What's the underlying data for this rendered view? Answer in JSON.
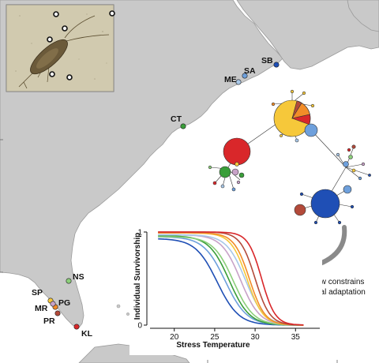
{
  "colors": {
    "ocean": "#ffffff",
    "land": "#c9c9c9",
    "coast": "#9a9a9a",
    "arrow": "#8a8a8a"
  },
  "sites": [
    {
      "code": "SB",
      "color": "#1f4fb5"
    },
    {
      "code": "SA",
      "color": "#6ea0dc"
    },
    {
      "code": "ME",
      "color": "#a9c8e8"
    },
    {
      "code": "CT",
      "color": "#3a9e3a"
    },
    {
      "code": "NS",
      "color": "#8ccf7a"
    },
    {
      "code": "SP",
      "color": "#f6c83a"
    },
    {
      "code": "MR",
      "color": "#f28c28"
    },
    {
      "code": "PG",
      "color": "#c8a2c8"
    },
    {
      "code": "PR",
      "color": "#b34a3a"
    },
    {
      "code": "KL",
      "color": "#d9272a"
    }
  ],
  "network": {
    "nodes_description": "haplotype network with pie-chart nodes colored by site"
  },
  "annotation": {
    "line1": "Gene flow constrains",
    "line2": "thermal adaptation"
  },
  "chart_data": {
    "type": "line",
    "xlabel": "Stress Temperature",
    "ylabel": "Individual Survivorship",
    "xlim": [
      17,
      38
    ],
    "ylim": [
      0,
      1
    ],
    "xticks": [
      20,
      25,
      30,
      35
    ],
    "yticks": [
      0,
      1
    ],
    "series": [
      {
        "color": "#1f4fb5",
        "midpoint": 25.3,
        "slope": 0.75,
        "start": 0.93
      },
      {
        "color": "#6ea0dc",
        "midpoint": 26.3,
        "slope": 0.75,
        "start": 0.95
      },
      {
        "color": "#3a9e3a",
        "midpoint": 26.8,
        "slope": 0.8,
        "start": 0.96
      },
      {
        "color": "#8ccf7a",
        "midpoint": 27.3,
        "slope": 0.8,
        "start": 0.95
      },
      {
        "color": "#c8a2c8",
        "midpoint": 28.2,
        "slope": 0.85,
        "start": 0.97
      },
      {
        "color": "#a9c8e8",
        "midpoint": 28.8,
        "slope": 0.85,
        "start": 0.97
      },
      {
        "color": "#f6c83a",
        "midpoint": 29.0,
        "slope": 1.0,
        "start": 0.99
      },
      {
        "color": "#f28c28",
        "midpoint": 29.3,
        "slope": 1.05,
        "start": 0.99
      },
      {
        "color": "#b34a3a",
        "midpoint": 30.0,
        "slope": 1.1,
        "start": 1.0
      },
      {
        "color": "#d9272a",
        "midpoint": 30.8,
        "slope": 1.2,
        "start": 1.0
      }
    ]
  }
}
